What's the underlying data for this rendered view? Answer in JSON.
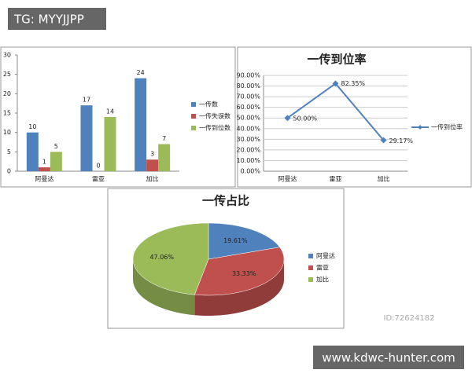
{
  "overlays": {
    "tag": "TG: MYYJJPP",
    "site": "www.kdwc-hunter.com",
    "watermark_id": "ID:72624182"
  },
  "chart_data": [
    {
      "type": "bar",
      "categories": [
        "阿曼达",
        "雷亚",
        "加比"
      ],
      "series": [
        {
          "name": "一传数",
          "color": "#4f81bd",
          "values": [
            10,
            17,
            24
          ]
        },
        {
          "name": "一传失误数",
          "color": "#c0504d",
          "values": [
            1,
            0,
            3
          ]
        },
        {
          "name": "一传到位数",
          "color": "#9bbb59",
          "values": [
            5,
            14,
            7
          ]
        }
      ],
      "ylim": [
        0,
        30
      ],
      "yticks": [
        0,
        5,
        10,
        15,
        20,
        25,
        30
      ],
      "grid": false,
      "legend": "right"
    },
    {
      "type": "line",
      "title": "一传到位率",
      "categories": [
        "阿曼达",
        "雷亚",
        "加比"
      ],
      "series": [
        {
          "name": "一传到位率",
          "color": "#4f81bd",
          "values": [
            50,
            82.35,
            29.17
          ],
          "value_labels": [
            "50.00%",
            "82.35%",
            "29.17%"
          ]
        }
      ],
      "ylim": [
        0,
        90
      ],
      "yticks": [
        {
          "value": 0,
          "label": "0.00%"
        },
        {
          "value": 10,
          "label": "10.00%"
        },
        {
          "value": 20,
          "label": "20.00%"
        },
        {
          "value": 30,
          "label": "30.00%"
        },
        {
          "value": 40,
          "label": "40.00%"
        },
        {
          "value": 50,
          "label": "50.00%"
        },
        {
          "value": 60,
          "label": "60.00%"
        },
        {
          "value": 70,
          "label": "70.00%"
        },
        {
          "value": 80,
          "label": "80.00%"
        },
        {
          "value": 90,
          "label": "90.00%"
        }
      ],
      "grid": true,
      "legend": "right"
    },
    {
      "type": "pie",
      "title": "一传占比",
      "categories": [
        "阿曼达",
        "雷亚",
        "加比"
      ],
      "values": [
        19.61,
        33.33,
        47.06
      ],
      "value_labels": [
        "19.61%",
        "33.33%",
        "47.06%"
      ],
      "colors": [
        "#4f81bd",
        "#c0504d",
        "#9bbb59"
      ],
      "legend": "right"
    }
  ]
}
